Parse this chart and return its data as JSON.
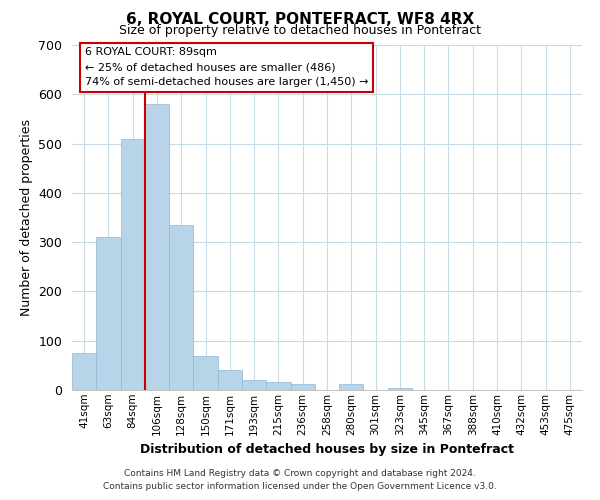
{
  "title": "6, ROYAL COURT, PONTEFRACT, WF8 4RX",
  "subtitle": "Size of property relative to detached houses in Pontefract",
  "xlabel": "Distribution of detached houses by size in Pontefract",
  "ylabel": "Number of detached properties",
  "bar_labels": [
    "41sqm",
    "63sqm",
    "84sqm",
    "106sqm",
    "128sqm",
    "150sqm",
    "171sqm",
    "193sqm",
    "215sqm",
    "236sqm",
    "258sqm",
    "280sqm",
    "301sqm",
    "323sqm",
    "345sqm",
    "367sqm",
    "388sqm",
    "410sqm",
    "432sqm",
    "453sqm",
    "475sqm"
  ],
  "bar_values": [
    75,
    310,
    510,
    580,
    335,
    70,
    40,
    20,
    17,
    12,
    0,
    12,
    0,
    5,
    0,
    0,
    0,
    0,
    0,
    0,
    0
  ],
  "bar_color": "#b8d4e8",
  "bar_edge_color": "#90b8d8",
  "vline_x_idx": 2,
  "vline_color": "#cc0000",
  "ylim": [
    0,
    700
  ],
  "yticks": [
    0,
    100,
    200,
    300,
    400,
    500,
    600,
    700
  ],
  "annotation_line1": "6 ROYAL COURT: 89sqm",
  "annotation_line2": "← 25% of detached houses are smaller (486)",
  "annotation_line3": "74% of semi-detached houses are larger (1,450) →",
  "annotation_box_color": "#ffffff",
  "annotation_box_edge": "#cc0000",
  "footer_line1": "Contains HM Land Registry data © Crown copyright and database right 2024.",
  "footer_line2": "Contains public sector information licensed under the Open Government Licence v3.0.",
  "bg_color": "#ffffff",
  "grid_color": "#c8dce8"
}
